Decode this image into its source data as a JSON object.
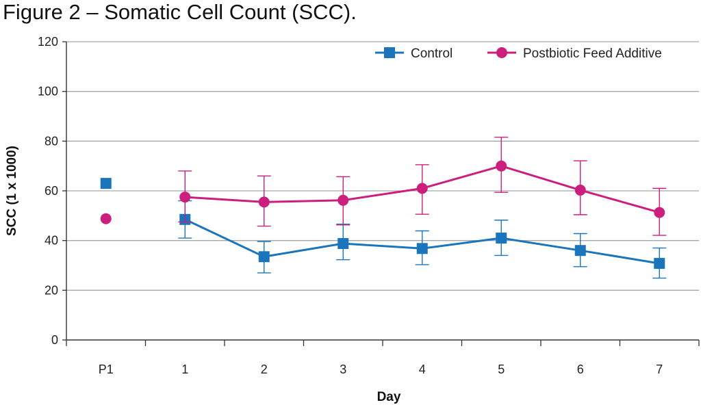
{
  "chart_data": {
    "type": "line",
    "title": "Figure 2 – Somatic Cell Count (SCC).",
    "xlabel": "Day",
    "ylabel": "SCC (1 x 1000)",
    "categories": [
      "P1",
      "1",
      "2",
      "3",
      "4",
      "5",
      "6",
      "7"
    ],
    "ylim": [
      0,
      120
    ],
    "yticks": [
      0,
      20,
      40,
      60,
      80,
      100,
      120
    ],
    "grid": true,
    "legend_position": "top-right",
    "series": [
      {
        "name": "Control",
        "color": "#1a75bc",
        "marker": "square",
        "values": [
          63,
          48.5,
          33.5,
          38.8,
          36.8,
          41,
          36,
          30.8
        ],
        "err_low": [
          null,
          41,
          27,
          32.3,
          30.3,
          34,
          29.5,
          24.9
        ],
        "err_high": [
          null,
          56,
          39.6,
          46.6,
          43.9,
          48.2,
          42.8,
          37
        ],
        "connected_from": 1
      },
      {
        "name": "Postbiotic Feed Additive",
        "color": "#cc1f7d",
        "marker": "circle",
        "values": [
          48.8,
          57.5,
          55.5,
          56.2,
          61,
          70,
          60.3,
          51.3
        ],
        "err_low": [
          null,
          47.5,
          45.8,
          46.3,
          50.6,
          59.4,
          50.4,
          42.1
        ],
        "err_high": [
          null,
          68,
          66,
          65.7,
          70.5,
          81.6,
          72.1,
          61
        ],
        "connected_from": 1
      }
    ]
  }
}
